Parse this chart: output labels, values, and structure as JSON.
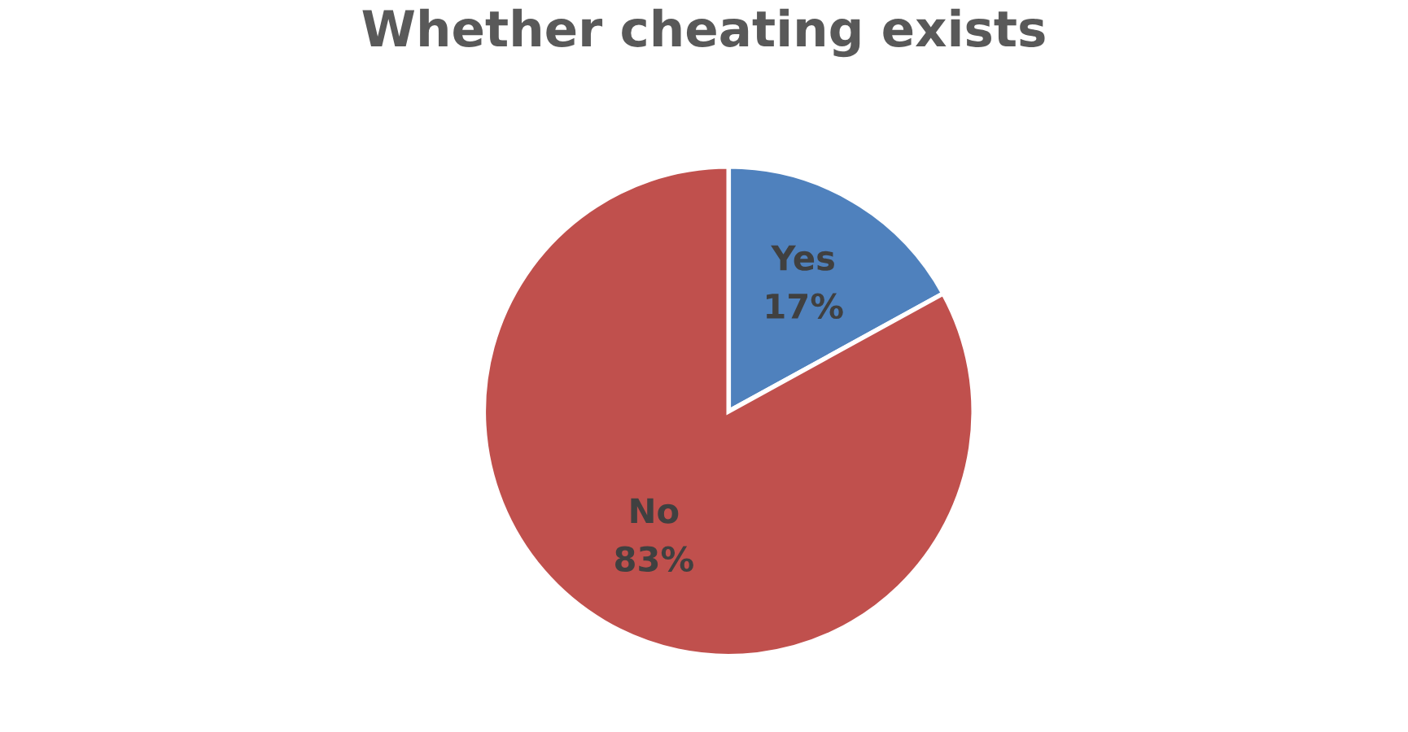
{
  "chart_data": {
    "type": "pie",
    "title": "Whether cheating exists",
    "categories": [
      "Yes",
      "No"
    ],
    "values": [
      17,
      83
    ],
    "value_labels": [
      "17%",
      "83%"
    ],
    "colors": [
      "#4f81bd",
      "#c0504d"
    ],
    "legend": false
  }
}
